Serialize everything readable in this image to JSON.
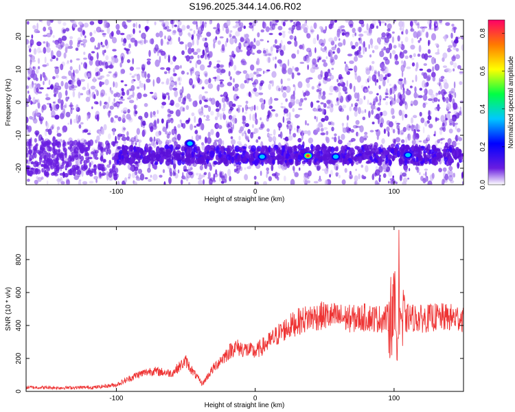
{
  "title": "S196.2025.344.14.06.R02",
  "colors": {
    "snr_line": "#ee3333",
    "spectrogram_base": "#6a1de0"
  },
  "chart_data": [
    {
      "type": "heatmap",
      "xlabel": "Height of straight line (km)",
      "ylabel": "Frequency (Hz)",
      "xlim": [
        -165,
        150
      ],
      "ylim": [
        -25,
        25
      ],
      "xticks": [
        -100,
        0,
        100
      ],
      "yticks": [
        -20,
        -10,
        0,
        10,
        20
      ],
      "colorbar": {
        "label": "Normalized spectral amplitude",
        "range": [
          0.0,
          0.87
        ],
        "ticks": [
          0.0,
          0.2,
          0.4,
          0.6,
          0.8
        ],
        "colormap": "rainbow"
      },
      "band": {
        "frequency": -16,
        "x_start": -100,
        "x_end": 150
      },
      "hotspots": [
        {
          "x": -47,
          "y": -12.5,
          "amplitude": 0.45
        },
        {
          "x": 5,
          "y": -16.5,
          "amplitude": 0.35
        },
        {
          "x": 38,
          "y": -16.2,
          "amplitude": 0.85
        },
        {
          "x": 58,
          "y": -16.5,
          "amplitude": 0.4
        },
        {
          "x": 110,
          "y": -16,
          "amplitude": 0.42
        }
      ]
    },
    {
      "type": "line",
      "xlabel": "Height of straight line (km)",
      "ylabel": "SNR (10 * v/v)",
      "xlim": [
        -165,
        150
      ],
      "ylim": [
        0,
        1000
      ],
      "xticks": [
        -100,
        0,
        100
      ],
      "yticks": [
        0,
        200,
        400,
        600,
        800
      ],
      "x": [
        -165,
        -140,
        -115,
        -100,
        -85,
        -75,
        -60,
        -50,
        -45,
        -38,
        -32,
        -25,
        -15,
        0,
        10,
        20,
        30,
        40,
        50,
        60,
        70,
        80,
        90,
        96,
        100,
        102,
        104,
        106,
        110,
        120,
        130,
        150
      ],
      "y": [
        25,
        22,
        25,
        40,
        100,
        125,
        110,
        185,
        120,
        45,
        120,
        190,
        270,
        240,
        300,
        370,
        420,
        450,
        460,
        450,
        440,
        450,
        440,
        445,
        500,
        420,
        600,
        380,
        450,
        440,
        450,
        445
      ]
    }
  ]
}
